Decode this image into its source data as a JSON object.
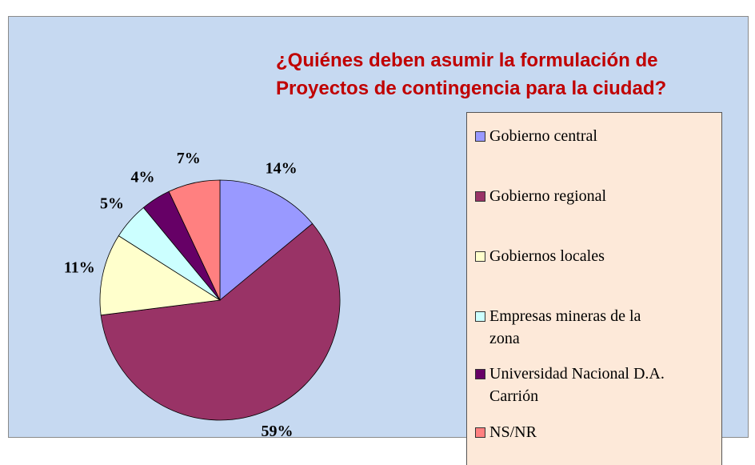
{
  "chart_data": {
    "type": "pie",
    "title": "¿Quiénes deben asumir la formulación de Proyectos de contingencia para la ciudad?",
    "categories": [
      "Gobierno central",
      "Gobierno regional",
      "Gobiernos locales",
      "Empresas mineras de la zona",
      "Universidad Nacional D.A. Carrión",
      "NS/NR"
    ],
    "values": [
      14,
      59,
      11,
      5,
      4,
      7
    ],
    "value_labels": [
      "14%",
      "59%",
      "11%",
      "5%",
      "4%",
      "7%"
    ],
    "colors": [
      "#9999ff",
      "#993366",
      "#ffffcc",
      "#ccffff",
      "#660066",
      "#ff8080"
    ]
  }
}
